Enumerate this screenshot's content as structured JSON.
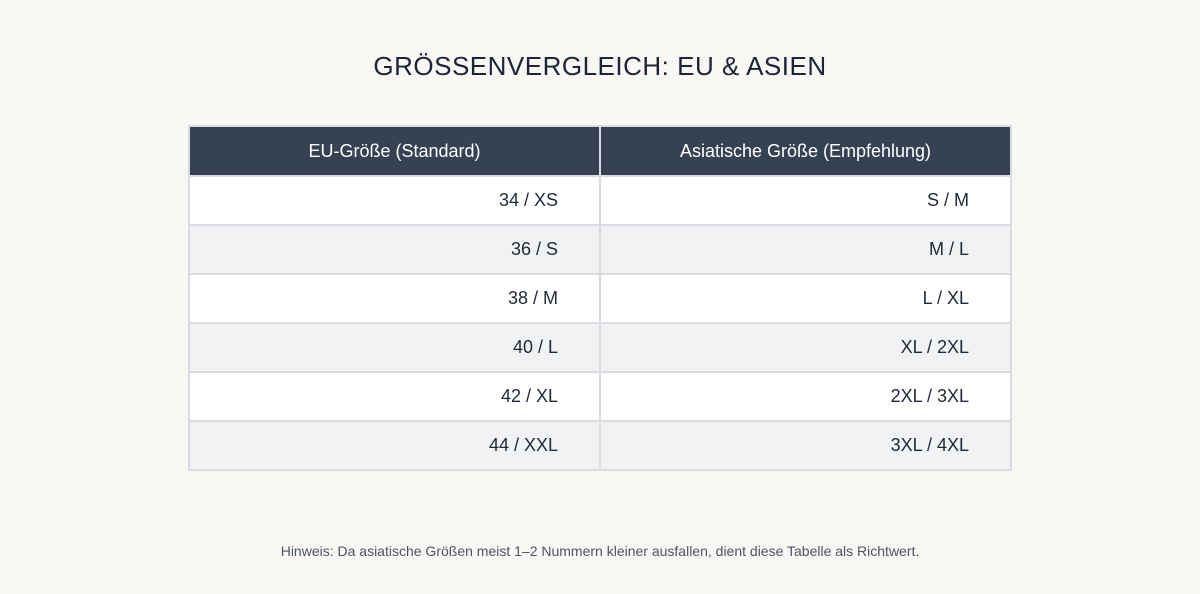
{
  "title": "GRÖSSENVERGLEICH: EU & ASIEN",
  "table": {
    "headers": [
      "EU-Größe (Standard)",
      "Asiatische Größe (Empfehlung)"
    ],
    "rows": [
      [
        "34 / XS",
        "S / M"
      ],
      [
        "36 / S",
        "M / L"
      ],
      [
        "38 / M",
        "L / XL"
      ],
      [
        "40 / L",
        "XL / 2XL"
      ],
      [
        "42 / XL",
        "2XL / 3XL"
      ],
      [
        "44 / XXL",
        "3XL / 4XL"
      ]
    ]
  },
  "note": "Hinweis: Da asiatische Größen meist 1–2 Nummern kleiner ausfallen, dient diese Tabelle als Richtwert.",
  "colors": {
    "background": "#f9f7f4",
    "header_bg": "#364154",
    "row_alt": "#f1f2f4",
    "border": "#d9dbe0"
  }
}
